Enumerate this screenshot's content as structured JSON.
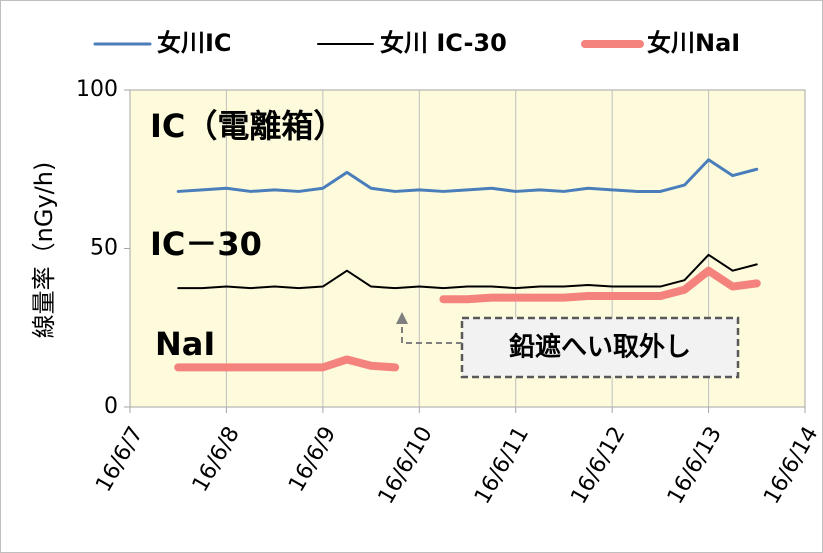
{
  "chart_data": {
    "type": "line",
    "ylabel": "線量率（nGy/h)",
    "x": [
      0.5,
      0.75,
      1,
      1.25,
      1.5,
      1.75,
      2,
      2.25,
      2.5,
      2.75,
      3,
      3.25,
      3.5,
      3.75,
      4,
      4.25,
      4.5,
      4.75,
      5,
      5.25,
      5.5,
      5.75,
      6,
      6.25,
      6.5
    ],
    "series": [
      {
        "name": "女川IC",
        "color": "#4a7ebb",
        "width": 3,
        "values": [
          68,
          68.5,
          69,
          68,
          68.5,
          68,
          69,
          74,
          69,
          68,
          68.5,
          68,
          68.5,
          69,
          68,
          68.5,
          68,
          69,
          68.5,
          68,
          68,
          70,
          78,
          73,
          75
        ]
      },
      {
        "name": "女川 IC-30",
        "color": "#000000",
        "width": 2,
        "values": [
          37.5,
          37.5,
          38,
          37.5,
          38,
          37.5,
          38,
          43,
          38,
          37.5,
          38,
          37.5,
          38,
          38,
          37.5,
          38,
          38,
          38.5,
          38,
          38,
          38,
          40,
          48,
          43,
          45
        ]
      },
      {
        "name": "女川NaI",
        "color": "#f4837d",
        "width": 8,
        "values": [
          12.5,
          12.5,
          12.5,
          12.5,
          12.5,
          12.5,
          12.5,
          15,
          13,
          12.5,
          null,
          34,
          34,
          34.5,
          34.5,
          34.5,
          34.5,
          35,
          35,
          35,
          35,
          37,
          43,
          38,
          39
        ]
      }
    ],
    "xlim": [
      0,
      7
    ],
    "xticks": [
      {
        "value": 0,
        "label": "16/6/7"
      },
      {
        "value": 1,
        "label": "16/6/8"
      },
      {
        "value": 2,
        "label": "16/6/9"
      },
      {
        "value": 3,
        "label": "16/6/10"
      },
      {
        "value": 4,
        "label": "16/6/11"
      },
      {
        "value": 5,
        "label": "16/6/12"
      },
      {
        "value": 6,
        "label": "16/6/13"
      },
      {
        "value": 7,
        "label": "16/6/14"
      }
    ],
    "ylim": [
      0,
      100
    ],
    "yticks": [
      0,
      50,
      100
    ],
    "grid": "x",
    "annotations": [
      "IC（電離箱）",
      "IC－30",
      "NaI",
      "鉛遮へい取外し"
    ]
  }
}
